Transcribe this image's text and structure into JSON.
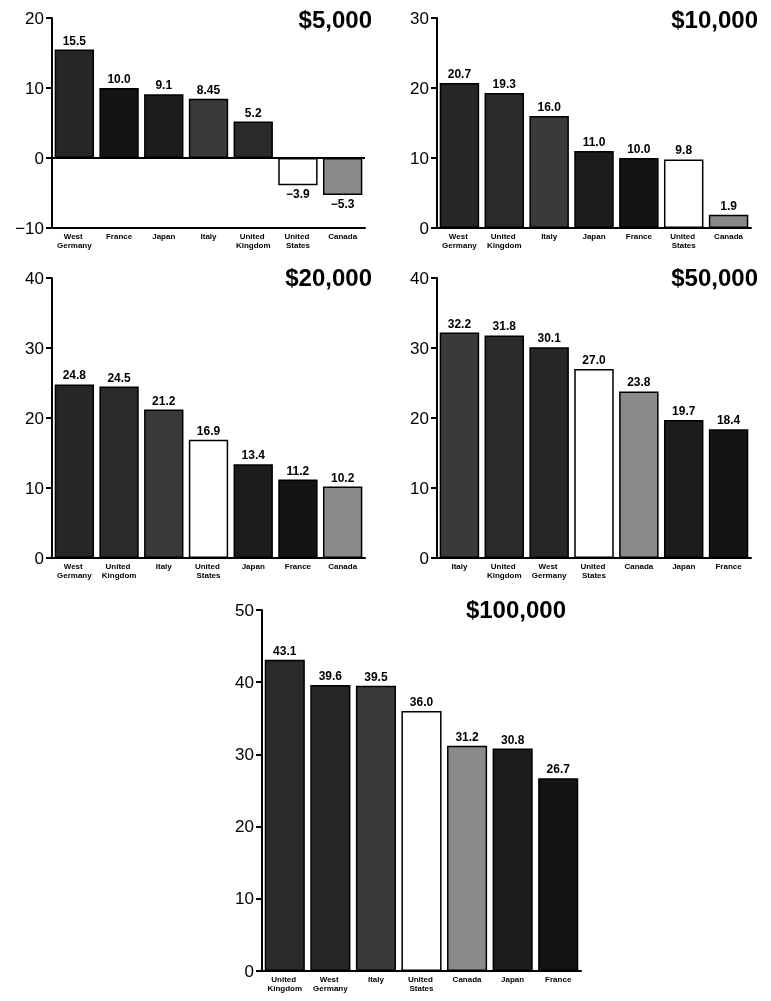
{
  "chart_data": [
    {
      "type": "bar",
      "title": "$5,000",
      "categories": [
        "West Germany",
        "France",
        "Japan",
        "Italy",
        "United Kingdom",
        "United States",
        "Canada"
      ],
      "values": [
        15.5,
        10.0,
        9.1,
        8.45,
        5.2,
        -3.9,
        -5.3
      ],
      "value_labels": [
        "15.5",
        "10.0",
        "9.1",
        "8.45",
        "5.2",
        "−3.9",
        "−5.3"
      ],
      "colors": [
        "#262626",
        "#141414",
        "#1c1c1c",
        "#3a3a3a",
        "#2a2a2a",
        "#ffffff",
        "#8a8a8a"
      ],
      "ylim": [
        -10,
        20
      ],
      "yticks": [
        -10,
        0,
        10,
        20
      ]
    },
    {
      "type": "bar",
      "title": "$10,000",
      "categories": [
        "West Germany",
        "United Kingdom",
        "Italy",
        "Japan",
        "France",
        "United States",
        "Canada"
      ],
      "values": [
        20.7,
        19.3,
        16.0,
        11.0,
        10.0,
        9.8,
        1.9
      ],
      "value_labels": [
        "20.7",
        "19.3",
        "16.0",
        "11.0",
        "10.0",
        "9.8",
        "1.9"
      ],
      "colors": [
        "#262626",
        "#2a2a2a",
        "#3a3a3a",
        "#1c1c1c",
        "#141414",
        "#ffffff",
        "#8a8a8a"
      ],
      "ylim": [
        0,
        30
      ],
      "yticks": [
        0,
        10,
        20,
        30
      ]
    },
    {
      "type": "bar",
      "title": "$20,000",
      "categories": [
        "West Germany",
        "United Kingdom",
        "Italy",
        "United States",
        "Japan",
        "France",
        "Canada"
      ],
      "values": [
        24.8,
        24.5,
        21.2,
        16.9,
        13.4,
        11.2,
        10.2
      ],
      "value_labels": [
        "24.8",
        "24.5",
        "21.2",
        "16.9",
        "13.4",
        "11.2",
        "10.2"
      ],
      "colors": [
        "#262626",
        "#2a2a2a",
        "#3a3a3a",
        "#ffffff",
        "#1c1c1c",
        "#141414",
        "#8a8a8a"
      ],
      "ylim": [
        0,
        40
      ],
      "yticks": [
        0,
        10,
        20,
        30,
        40
      ]
    },
    {
      "type": "bar",
      "title": "$50,000",
      "categories": [
        "Italy",
        "United Kingdom",
        "West Germany",
        "United States",
        "Canada",
        "Japan",
        "France"
      ],
      "values": [
        32.2,
        31.8,
        30.1,
        27.0,
        23.8,
        19.7,
        18.4
      ],
      "value_labels": [
        "32.2",
        "31.8",
        "30.1",
        "27.0",
        "23.8",
        "19.7",
        "18.4"
      ],
      "colors": [
        "#3a3a3a",
        "#2a2a2a",
        "#262626",
        "#ffffff",
        "#8a8a8a",
        "#1c1c1c",
        "#141414"
      ],
      "ylim": [
        0,
        40
      ],
      "yticks": [
        0,
        10,
        20,
        30,
        40
      ]
    },
    {
      "type": "bar",
      "title": "$100,000",
      "categories": [
        "United Kingdom",
        "West Germany",
        "Italy",
        "United States",
        "Canada",
        "Japan",
        "France"
      ],
      "values": [
        43.1,
        39.6,
        39.5,
        36.0,
        31.2,
        30.8,
        26.7
      ],
      "value_labels": [
        "43.1",
        "39.6",
        "39.5",
        "36.0",
        "31.2",
        "30.8",
        "26.7"
      ],
      "colors": [
        "#2a2a2a",
        "#262626",
        "#3a3a3a",
        "#ffffff",
        "#8a8a8a",
        "#1c1c1c",
        "#141414"
      ],
      "ylim": [
        0,
        50
      ],
      "yticks": [
        0,
        10,
        20,
        30,
        40,
        50
      ]
    }
  ]
}
